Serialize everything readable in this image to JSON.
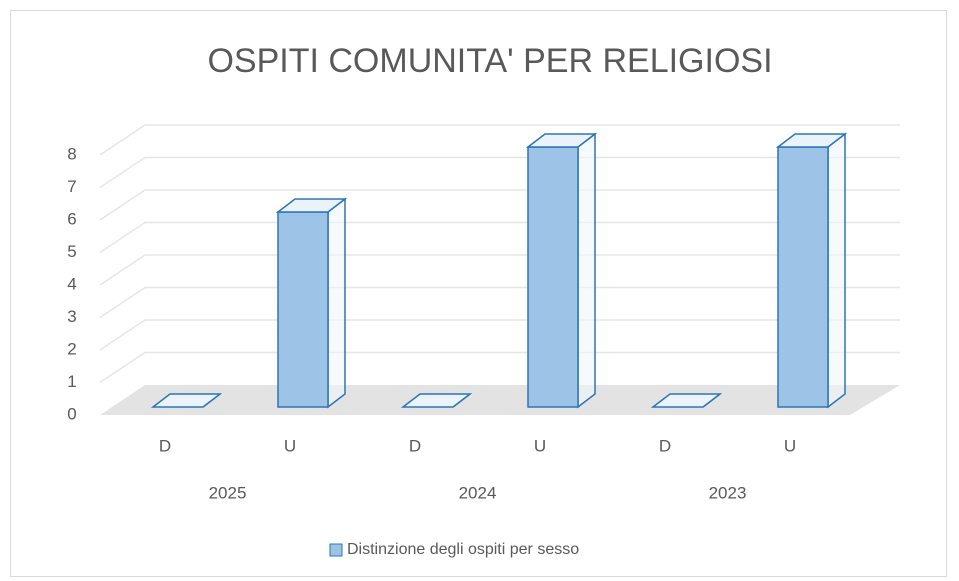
{
  "chart_data": {
    "type": "bar3d",
    "title": "OSPITI COMUNITA' PER RELIGIOSI",
    "categories": [
      "D",
      "U",
      "D",
      "U",
      "D",
      "U"
    ],
    "groups": [
      "2025",
      "2024",
      "2023"
    ],
    "series": [
      {
        "name": "Distinzione degli ospiti per sesso",
        "color": "#9dc3e6",
        "values": [
          0,
          6,
          0,
          8,
          0,
          8
        ]
      }
    ],
    "ylim": [
      0,
      8
    ],
    "yticks": [
      0,
      1,
      2,
      3,
      4,
      5,
      6,
      7,
      8
    ],
    "grid": true,
    "legend": "bottom"
  }
}
